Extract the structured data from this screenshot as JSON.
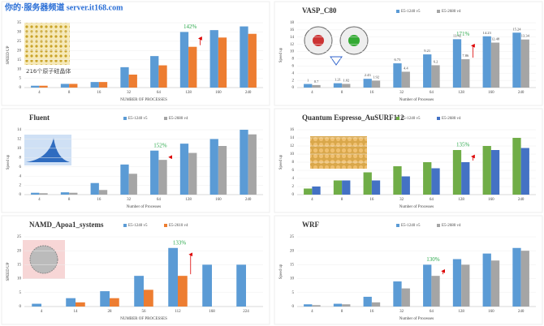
{
  "header": {
    "watermark": "你的·服务器频道 server.it168.com"
  },
  "chart_data": [
    {
      "type": "bar",
      "title": "216个原子硅晶体",
      "y_label": "SPEED UP",
      "x_label": "NUMBER OF PROCESSES",
      "categories": [
        "4",
        "8",
        "16",
        "32",
        "64",
        "128",
        "160",
        "240"
      ],
      "series": [
        {
          "color": "#5b9bd5",
          "values": [
            1,
            2,
            3,
            11,
            17,
            30,
            31,
            33
          ]
        },
        {
          "color": "#ed7d31",
          "values": [
            1,
            2,
            3,
            7,
            12,
            22,
            27,
            29
          ]
        }
      ],
      "ylim": [
        0,
        35
      ],
      "yticks": [
        0,
        5,
        10,
        15,
        20,
        25,
        30,
        35
      ],
      "annotation": "142%"
    },
    {
      "type": "bar",
      "title": "VASP_C80",
      "y_label": "Speed up",
      "x_label": "Number of Processes",
      "categories": [
        "4",
        "8",
        "16",
        "32",
        "64",
        "128",
        "160",
        "240"
      ],
      "series": [
        {
          "name": "E5-1240 v5",
          "color": "#5b9bd5",
          "values": [
            1,
            1.21,
            2.43,
            6.73,
            9.21,
            13.42,
            14.23,
            15.24
          ]
        },
        {
          "name": "E5-2680 v4",
          "color": "#a5a5a5",
          "values": [
            0.7,
            1.02,
            1.92,
            4.4,
            6.2,
            7.86,
            12.48,
            13.34
          ]
        }
      ],
      "data_labels": true,
      "ylim": [
        0,
        18
      ],
      "yticks": [
        0,
        2,
        4,
        6,
        8,
        10,
        12,
        14,
        16,
        18
      ],
      "annotation": "171%"
    },
    {
      "type": "bar",
      "title": "Fluent",
      "y_label": "Speed up",
      "x_label": "Number of Processes",
      "categories": [
        "4",
        "8",
        "16",
        "32",
        "64",
        "128",
        "160",
        "240"
      ],
      "series": [
        {
          "name": "E5-1240 v5",
          "color": "#5b9bd5",
          "values": [
            0.4,
            0.5,
            2.5,
            6.5,
            9.5,
            11,
            12,
            14
          ]
        },
        {
          "name": "E5-2680 v4",
          "color": "#a5a5a5",
          "values": [
            0.3,
            0.4,
            1,
            4.5,
            7.5,
            9,
            10.5,
            13
          ]
        }
      ],
      "ylim": [
        0,
        14
      ],
      "yticks": [
        0,
        2,
        4,
        6,
        8,
        10,
        12,
        14
      ],
      "annotation": "152%"
    },
    {
      "type": "bar",
      "title": "Quantum Espresso_AuSURF112",
      "y_label": "Speed up",
      "x_label": "Number of Processes",
      "categories": [
        "4",
        "8",
        "16",
        "32",
        "64",
        "128",
        "160",
        "240"
      ],
      "series": [
        {
          "name": "E5-1240 v5",
          "color": "#70ad47",
          "values": [
            1.5,
            3.5,
            5.5,
            7,
            8,
            11,
            12,
            14
          ]
        },
        {
          "name": "E5-2680 v4",
          "color": "#4472c4",
          "values": [
            2,
            3.5,
            3.5,
            4.5,
            6.5,
            8,
            11,
            11.5
          ]
        }
      ],
      "ylim": [
        0,
        16
      ],
      "yticks": [
        0,
        2,
        4,
        6,
        8,
        10,
        12,
        14,
        16
      ],
      "annotation": "135%"
    },
    {
      "type": "bar",
      "title": "NAMD_Apoa1_systems",
      "y_label": "SPEED UP",
      "x_label": "NUMBER OF PROCESSES",
      "categories": [
        "4",
        "14",
        "28",
        "56",
        "112",
        "168",
        "224"
      ],
      "series": [
        {
          "name": "E5-1240 v5",
          "color": "#5b9bd5",
          "values": [
            1,
            3,
            5.5,
            11,
            21,
            15,
            15
          ]
        },
        {
          "name": "E5-2610 v4",
          "color": "#ed7d31",
          "values": [
            null,
            1.5,
            3,
            6,
            11,
            null,
            null
          ]
        }
      ],
      "ylim": [
        0,
        25
      ],
      "yticks": [
        0,
        5,
        10,
        15,
        20,
        25
      ],
      "annotation": "133%"
    },
    {
      "type": "bar",
      "title": "WRF",
      "y_label": "Speed up",
      "x_label": "Number of Processes",
      "categories": [
        "4",
        "8",
        "16",
        "32",
        "64",
        "128",
        "160",
        "240"
      ],
      "series": [
        {
          "name": "E5-1240 v5",
          "color": "#5b9bd5",
          "values": [
            0.8,
            1,
            3.5,
            9,
            15,
            17,
            19,
            21
          ]
        },
        {
          "name": "E5-2680 v4",
          "color": "#a5a5a5",
          "values": [
            0.5,
            0.8,
            1.5,
            6.5,
            11,
            15,
            16.5,
            20
          ]
        }
      ],
      "ylim": [
        0,
        25
      ],
      "yticks": [
        0,
        5,
        10,
        15,
        20,
        25
      ],
      "annotation": "130%"
    }
  ]
}
